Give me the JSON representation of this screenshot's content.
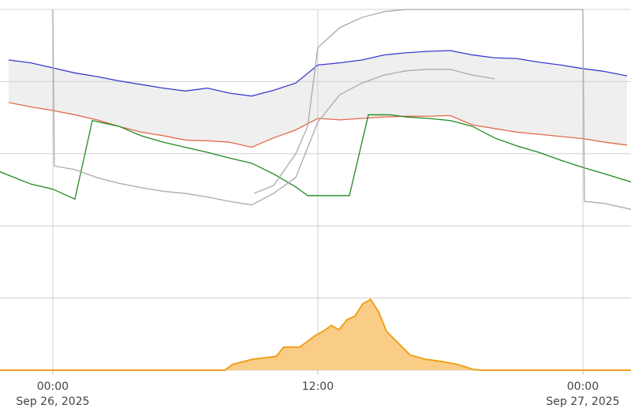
{
  "chart_data": {
    "type": "line",
    "xlim": [
      -2.39,
      26.18
    ],
    "xticks": [
      {
        "value": 0,
        "label": "00:00"
      },
      {
        "value": 12,
        "label": "12:00"
      },
      {
        "value": 24,
        "label": "00:00"
      }
    ],
    "x_dates": [
      {
        "value": 0,
        "label": "Sep 26, 2025"
      },
      {
        "value": 24,
        "label": "Sep 27, 2025"
      }
    ],
    "ylim": [
      0,
      5
    ],
    "yticks": [
      0,
      1,
      2,
      3,
      4,
      5
    ],
    "grid": true,
    "band_between": [
      0,
      1
    ],
    "band_color": "#efefef",
    "series": [
      {
        "color": "#3b3bd0",
        "x": [
          -2,
          -1,
          0,
          1,
          2,
          3,
          4,
          5,
          6,
          7,
          8,
          9,
          10,
          11,
          12,
          13,
          14,
          15,
          16,
          17,
          18,
          19,
          20,
          21,
          22,
          23,
          24,
          25,
          26
        ],
        "values": [
          4.3,
          4.26,
          4.19,
          4.12,
          4.07,
          4.01,
          3.96,
          3.91,
          3.87,
          3.91,
          3.84,
          3.8,
          3.88,
          3.98,
          4.23,
          4.26,
          4.3,
          4.37,
          4.4,
          4.42,
          4.43,
          4.37,
          4.33,
          4.32,
          4.27,
          4.23,
          4.18,
          4.14,
          4.08
        ]
      },
      {
        "color": "#e2694c",
        "x": [
          -2,
          -1,
          0,
          1,
          2,
          3,
          4,
          5,
          6,
          7,
          8,
          9,
          10,
          11,
          12,
          13,
          14,
          15,
          16,
          17,
          18,
          19,
          20,
          21,
          22,
          23,
          24,
          25,
          26
        ],
        "values": [
          3.71,
          3.65,
          3.6,
          3.54,
          3.47,
          3.38,
          3.3,
          3.25,
          3.19,
          3.18,
          3.16,
          3.09,
          3.22,
          3.33,
          3.49,
          3.47,
          3.49,
          3.51,
          3.52,
          3.52,
          3.53,
          3.4,
          3.35,
          3.3,
          3.27,
          3.24,
          3.21,
          3.16,
          3.12
        ]
      },
      {
        "color": "#1f8a1f",
        "x": [
          -2.39,
          -1,
          0,
          1,
          1.79,
          3,
          4,
          5,
          6,
          7,
          8,
          9,
          10,
          11,
          11.54,
          13.43,
          14.29,
          15.29,
          16,
          17,
          18,
          19,
          20,
          21,
          22,
          23,
          24,
          25,
          26.18
        ],
        "values": [
          2.75,
          2.58,
          2.51,
          2.37,
          3.46,
          3.38,
          3.25,
          3.16,
          3.09,
          3.02,
          2.94,
          2.87,
          2.72,
          2.54,
          2.42,
          2.42,
          3.54,
          3.54,
          3.51,
          3.49,
          3.46,
          3.38,
          3.22,
          3.11,
          3.02,
          2.91,
          2.81,
          2.72,
          2.61
        ]
      },
      {
        "color": "#aaaaaa",
        "x": [
          0,
          0.07,
          1,
          2,
          3,
          4,
          5,
          6,
          7,
          8,
          9,
          10,
          11,
          12,
          13,
          14,
          15,
          16,
          17,
          18,
          19,
          20
        ],
        "values": [
          5.0,
          2.83,
          2.78,
          2.67,
          2.59,
          2.53,
          2.48,
          2.45,
          2.4,
          2.34,
          2.29,
          2.45,
          2.67,
          3.44,
          3.82,
          3.98,
          4.09,
          4.15,
          4.17,
          4.17,
          4.09,
          4.04
        ]
      },
      {
        "color": "#aaaaaa",
        "x": [
          9.11,
          10,
          11,
          11.54,
          12,
          13,
          14,
          15,
          16,
          17,
          18,
          19,
          20,
          21,
          22,
          23,
          24,
          24.07,
          25,
          26.18
        ],
        "values": [
          2.45,
          2.56,
          3.0,
          3.38,
          4.47,
          4.75,
          4.89,
          4.97,
          5.0,
          5.0,
          5.0,
          5.0,
          5.0,
          5.0,
          5.0,
          5.0,
          5.0,
          2.34,
          2.31,
          2.23
        ]
      },
      {
        "color": "#f0a020",
        "fill": "#f9cd85",
        "x": [
          -2.39,
          7.79,
          8.14,
          9.04,
          10.11,
          10.46,
          11.18,
          11.54,
          11.89,
          12.25,
          12.61,
          12.96,
          13.32,
          13.68,
          14.04,
          14.39,
          14.75,
          15.11,
          15.46,
          15.82,
          16.18,
          16.89,
          17.61,
          18.32,
          19.04,
          19.39,
          26.18
        ],
        "values": [
          0,
          0,
          0.08,
          0.15,
          0.19,
          0.32,
          0.32,
          0.4,
          0.48,
          0.54,
          0.62,
          0.56,
          0.7,
          0.75,
          0.92,
          0.98,
          0.81,
          0.54,
          0.43,
          0.32,
          0.21,
          0.15,
          0.12,
          0.08,
          0.01,
          0,
          0
        ]
      }
    ]
  }
}
